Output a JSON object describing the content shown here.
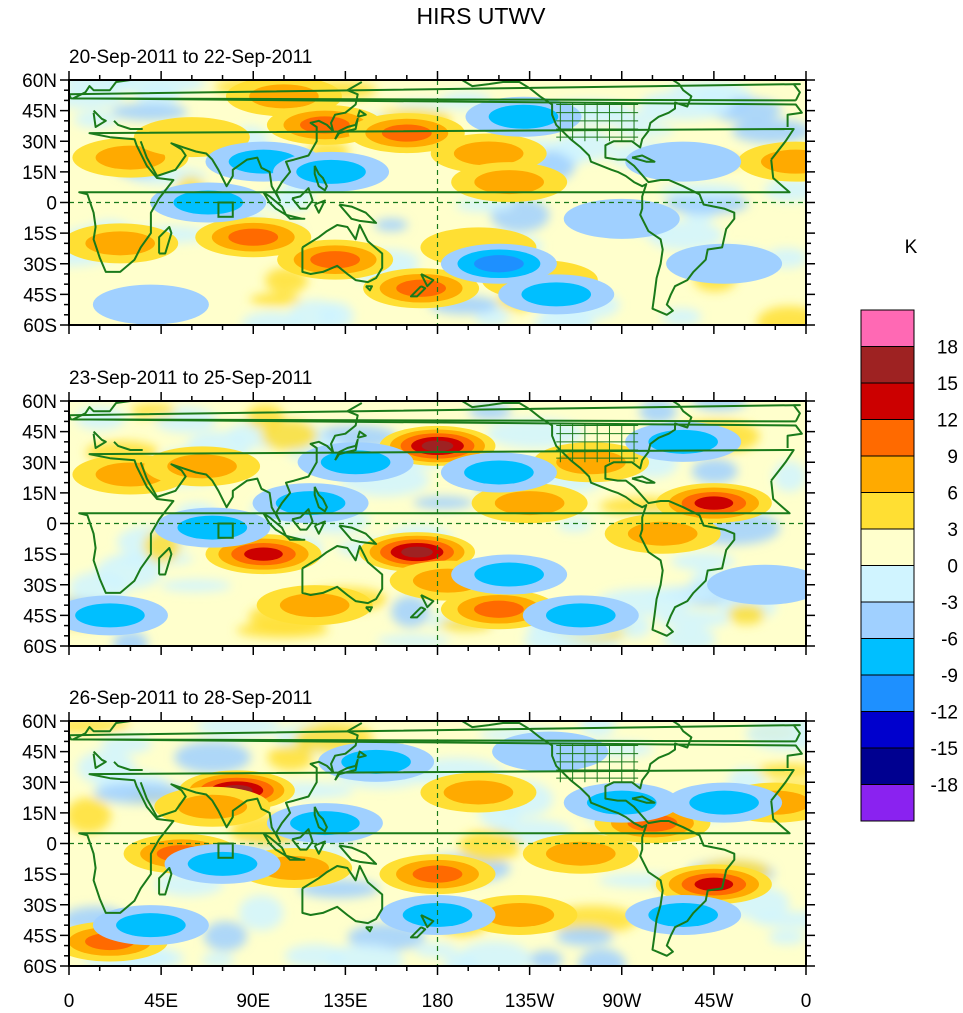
{
  "chart_data": {
    "type": "heatmap",
    "title": "HIRS UTWV",
    "units_label": "K",
    "panels": [
      {
        "subtitle": "20-Sep-2011 to 22-Sep-2011",
        "features": [
          {
            "lon": 30,
            "lat": 22,
            "value": 8
          },
          {
            "lon": 60,
            "lat": 32,
            "value": 5
          },
          {
            "lon": 105,
            "lat": 52,
            "value": 8
          },
          {
            "lon": 125,
            "lat": 38,
            "value": 9
          },
          {
            "lon": 165,
            "lat": 34,
            "value": 9
          },
          {
            "lon": 205,
            "lat": 24,
            "value": 8
          },
          {
            "lon": 215,
            "lat": 10,
            "value": 6
          },
          {
            "lon": 355,
            "lat": 20,
            "value": 7
          },
          {
            "lon": 90,
            "lat": -17,
            "value": 9
          },
          {
            "lon": 130,
            "lat": -28,
            "value": 9
          },
          {
            "lon": 172,
            "lat": -42,
            "value": 9
          },
          {
            "lon": 25,
            "lat": -20,
            "value": 6
          },
          {
            "lon": 200,
            "lat": -22,
            "value": 5
          },
          {
            "lon": 230,
            "lat": -38,
            "value": 5
          },
          {
            "lon": 68,
            "lat": 0,
            "value": -6
          },
          {
            "lon": 95,
            "lat": 20,
            "value": -6
          },
          {
            "lon": 128,
            "lat": 15,
            "value": -6
          },
          {
            "lon": 222,
            "lat": 42,
            "value": -8
          },
          {
            "lon": 210,
            "lat": -30,
            "value": -10
          },
          {
            "lon": 238,
            "lat": -45,
            "value": -8
          },
          {
            "lon": 270,
            "lat": -8,
            "value": -4
          },
          {
            "lon": 300,
            "lat": 20,
            "value": -4
          },
          {
            "lon": 320,
            "lat": -30,
            "value": -4
          },
          {
            "lon": 40,
            "lat": -50,
            "value": -4
          }
        ]
      },
      {
        "subtitle": "23-Sep-2011 to 25-Sep-2011",
        "features": [
          {
            "lon": 30,
            "lat": 24,
            "value": 6
          },
          {
            "lon": 65,
            "lat": 28,
            "value": 8
          },
          {
            "lon": 180,
            "lat": 38,
            "value": 15
          },
          {
            "lon": 170,
            "lat": -14,
            "value": 16
          },
          {
            "lon": 95,
            "lat": -15,
            "value": 12
          },
          {
            "lon": 185,
            "lat": -28,
            "value": 8
          },
          {
            "lon": 210,
            "lat": -42,
            "value": 10
          },
          {
            "lon": 225,
            "lat": 10,
            "value": 8
          },
          {
            "lon": 315,
            "lat": 10,
            "value": 12
          },
          {
            "lon": 255,
            "lat": 30,
            "value": 8
          },
          {
            "lon": 290,
            "lat": -5,
            "value": 6
          },
          {
            "lon": 120,
            "lat": -40,
            "value": 6
          },
          {
            "lon": 70,
            "lat": -2,
            "value": -6
          },
          {
            "lon": 140,
            "lat": 30,
            "value": -8
          },
          {
            "lon": 210,
            "lat": 25,
            "value": -6
          },
          {
            "lon": 300,
            "lat": 40,
            "value": -6
          },
          {
            "lon": 215,
            "lat": -25,
            "value": -8
          },
          {
            "lon": 250,
            "lat": -45,
            "value": -6
          },
          {
            "lon": 20,
            "lat": -45,
            "value": -6
          },
          {
            "lon": 340,
            "lat": -30,
            "value": -4
          },
          {
            "lon": 118,
            "lat": 10,
            "value": -6
          }
        ]
      },
      {
        "subtitle": "26-Sep-2011 to 28-Sep-2011",
        "features": [
          {
            "lon": 82,
            "lat": 26,
            "value": 16
          },
          {
            "lon": 70,
            "lat": 18,
            "value": 8
          },
          {
            "lon": 55,
            "lat": -5,
            "value": 10
          },
          {
            "lon": 110,
            "lat": -12,
            "value": 8
          },
          {
            "lon": 180,
            "lat": -15,
            "value": 9
          },
          {
            "lon": 200,
            "lat": 25,
            "value": 8
          },
          {
            "lon": 315,
            "lat": -20,
            "value": 14
          },
          {
            "lon": 345,
            "lat": 20,
            "value": 8
          },
          {
            "lon": 20,
            "lat": -48,
            "value": 9
          },
          {
            "lon": 220,
            "lat": -35,
            "value": 7
          },
          {
            "lon": 285,
            "lat": 10,
            "value": 9
          },
          {
            "lon": 250,
            "lat": -5,
            "value": 6
          },
          {
            "lon": 75,
            "lat": -10,
            "value": -8
          },
          {
            "lon": 125,
            "lat": 10,
            "value": -8
          },
          {
            "lon": 150,
            "lat": 40,
            "value": -6
          },
          {
            "lon": 270,
            "lat": 20,
            "value": -7
          },
          {
            "lon": 320,
            "lat": 20,
            "value": -6
          },
          {
            "lon": 180,
            "lat": -35,
            "value": -6
          },
          {
            "lon": 300,
            "lat": -35,
            "value": -6
          },
          {
            "lon": 40,
            "lat": -40,
            "value": -6
          },
          {
            "lon": 235,
            "lat": 45,
            "value": -4
          }
        ]
      }
    ],
    "xaxis": {
      "range": [
        0,
        360
      ],
      "ticks": [
        0,
        45,
        90,
        135,
        180,
        225,
        270,
        315,
        360
      ],
      "tick_labels": [
        "0",
        "45E",
        "90E",
        "135E",
        "180",
        "135W",
        "90W",
        "45W",
        "0"
      ]
    },
    "yaxis": {
      "range": [
        -60,
        60
      ],
      "ticks": [
        60,
        45,
        30,
        15,
        0,
        -15,
        -30,
        -45,
        -60
      ],
      "tick_labels": [
        "60N",
        "45N",
        "30N",
        "15N",
        "0",
        "15S",
        "30S",
        "45S",
        "60S"
      ]
    },
    "reference_lines": {
      "equator": 0,
      "dateline": 180,
      "style": "dashed"
    },
    "colorbar": {
      "levels": [
        18,
        15,
        12,
        9,
        6,
        3,
        0,
        -3,
        -6,
        -9,
        -12,
        -15,
        -18
      ],
      "level_labels": [
        "18",
        "15",
        "12",
        "9",
        "6",
        "3",
        "0",
        "-3",
        "-6",
        "-9",
        "-12",
        "-15",
        "-18"
      ],
      "colors": [
        "#ff69b4",
        "#9e2222",
        "#cc0000",
        "#ff6a00",
        "#ffaa00",
        "#ffdf33",
        "#ffffcc",
        "#d0f4ff",
        "#a0d0ff",
        "#00bfff",
        "#1e90ff",
        "#0000cd",
        "#000090",
        "#8a22f0"
      ]
    },
    "coastline_color": "#1a7a1a",
    "grid": false,
    "legend_placement": "right"
  }
}
